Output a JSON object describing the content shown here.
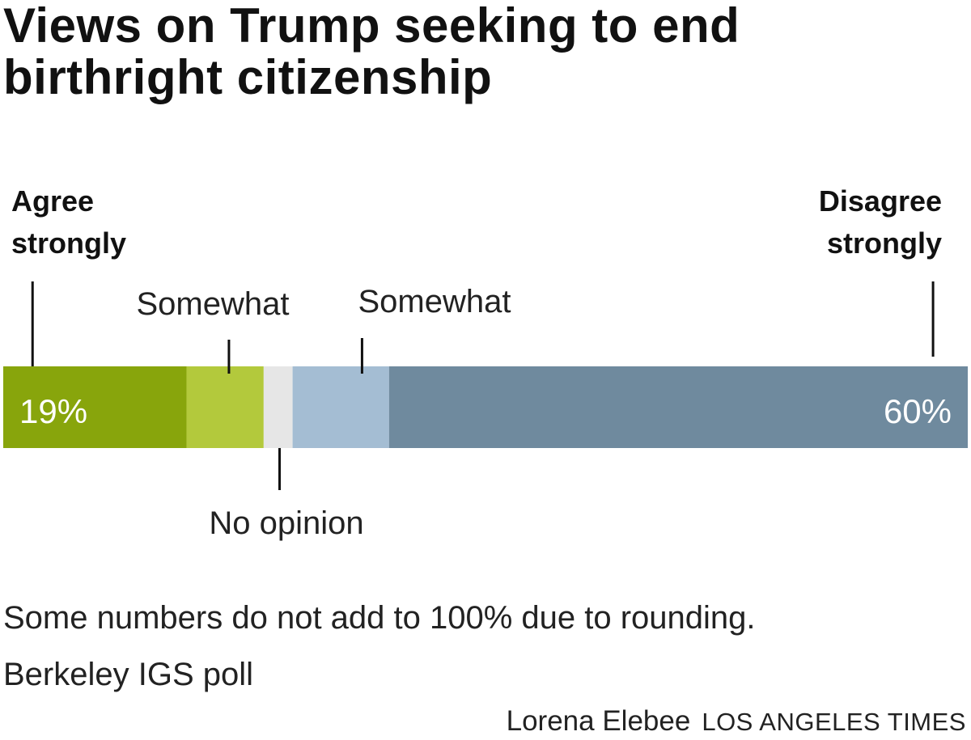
{
  "title": "Views on Trump seeking to end birthright citizenship",
  "colors": {
    "agree_strongly": "#88a50c",
    "agree_somewhat": "#b3c93c",
    "no_opinion": "#e6e6e6",
    "disagree_somewhat": "#a4bdd3",
    "disagree_strongly": "#6f8a9e"
  },
  "chart_data": {
    "type": "bar",
    "orientation": "horizontal-stacked",
    "title": "Views on Trump seeking to end birthright citizenship",
    "series": [
      {
        "name": "Agree strongly",
        "value": 19,
        "data_label": "19%",
        "category_label": "Agree strongly",
        "color": "#88a50c"
      },
      {
        "name": "Agree somewhat",
        "value": 8,
        "data_label": "",
        "category_label": "Somewhat",
        "color": "#b3c93c"
      },
      {
        "name": "No opinion",
        "value": 3,
        "data_label": "",
        "category_label": "No opinion",
        "color": "#e6e6e6"
      },
      {
        "name": "Disagree somewhat",
        "value": 10,
        "data_label": "",
        "category_label": "Somewhat",
        "color": "#a4bdd3"
      },
      {
        "name": "Disagree strongly",
        "value": 60,
        "data_label": "60%",
        "category_label": "Disagree strongly",
        "color": "#6f8a9e"
      }
    ],
    "xlim": [
      0,
      100
    ],
    "unit": "%"
  },
  "labels": {
    "agree_strongly": [
      "Agree",
      "strongly"
    ],
    "disagree_strongly": [
      "Disagree",
      "strongly"
    ],
    "agree_somewhat": "Somewhat",
    "disagree_somewhat": "Somewhat",
    "no_opinion": "No opinion"
  },
  "footnote": "Some numbers do not add to 100% due to rounding.",
  "source": "Berkeley IGS poll",
  "author": "Lorena Elebee",
  "outlet": "LOS ANGELES TIMES"
}
